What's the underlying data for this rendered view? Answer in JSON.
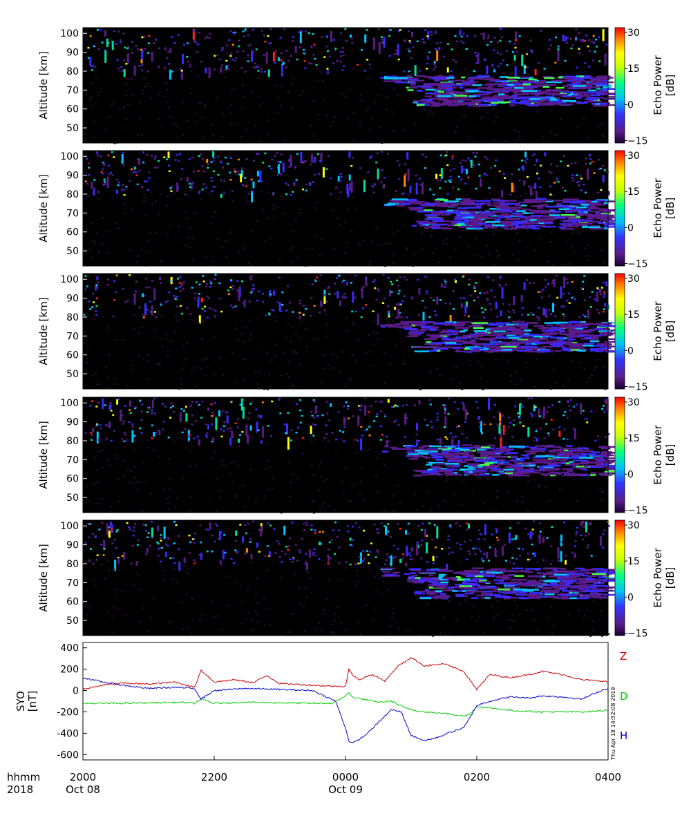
{
  "chart_data": {
    "type": "heatmap",
    "time_axis": {
      "tick_labels": [
        "2000",
        "2200",
        "0000",
        "0200",
        "0400"
      ],
      "range_hours": [
        20,
        28
      ],
      "row_label_1": "hhmm",
      "row_label_2": "2018",
      "dates": [
        {
          "at": "2000",
          "label": "Oct 08"
        },
        {
          "at": "0000",
          "label": "Oct 09"
        }
      ]
    },
    "radar_panels": {
      "count": 5,
      "ylabel": "Altitude [km]",
      "ylim": [
        42,
        103
      ],
      "yticks": [
        50,
        60,
        70,
        80,
        90,
        100
      ],
      "colorbar": {
        "label_line1": "Echo Power",
        "label_line2": "[dB]",
        "range": [
          -16,
          32
        ],
        "ticks": [
          30,
          15,
          0,
          -15
        ],
        "tick_labels": [
          "30",
          "15",
          "0",
          "−15"
        ],
        "colormap": [
          "#1a0033",
          "#5a1b8a",
          "#3333ff",
          "#00c0ff",
          "#00ff80",
          "#ffff00",
          "#ff8000",
          "#ff0000"
        ]
      },
      "features": [
        {
          "layer": "upper",
          "alt_range_km": [
            82,
            103
          ],
          "time_range": [
            "2000",
            "0400"
          ],
          "echo_power_dB": [
            -15,
            30
          ]
        },
        {
          "layer": "lower",
          "alt_range_km": [
            58,
            78
          ],
          "time_range": [
            "0030",
            "0400"
          ],
          "echo_power_dB": [
            -10,
            10
          ]
        }
      ]
    },
    "magnetometer": {
      "type": "line",
      "ylabel_line1": "SYO",
      "ylabel_line2": "[nT]",
      "ylim": [
        -650,
        450
      ],
      "yticks": [
        400,
        200,
        0,
        -200,
        -400,
        -600
      ],
      "series": [
        {
          "name": "Z",
          "color": "#cc0000",
          "x_hours": [
            20,
            20.3,
            20.6,
            21,
            21.4,
            21.7,
            21.8,
            22,
            22.3,
            22.6,
            22.8,
            23,
            23.2,
            23.5,
            23.8,
            24,
            24.05,
            24.1,
            24.2,
            24.4,
            24.6,
            24.8,
            25,
            25.2,
            25.5,
            25.8,
            26,
            26.2,
            26.5,
            26.8,
            27,
            27.3,
            27.6,
            27.9,
            28
          ],
          "values": [
            10,
            50,
            70,
            60,
            80,
            30,
            190,
            80,
            100,
            75,
            140,
            65,
            60,
            50,
            40,
            40,
            200,
            150,
            100,
            150,
            90,
            230,
            310,
            230,
            250,
            180,
            10,
            150,
            120,
            150,
            180,
            150,
            100,
            90,
            80
          ]
        },
        {
          "name": "D",
          "color": "#00cc00",
          "x_hours": [
            20,
            20.5,
            21,
            21.5,
            21.7,
            21.8,
            22,
            22.5,
            23,
            23.5,
            23.8,
            24,
            24.05,
            24.1,
            24.5,
            24.7,
            24.9,
            25,
            25.2,
            25.4,
            25.6,
            25.8,
            25.9,
            26,
            26.3,
            26.6,
            27,
            27.3,
            27.6,
            27.9,
            28
          ],
          "values": [
            -120,
            -120,
            -115,
            -110,
            -120,
            -80,
            -120,
            -110,
            -115,
            -120,
            -120,
            -50,
            -20,
            -60,
            -110,
            -100,
            -160,
            -180,
            -200,
            -210,
            -220,
            -240,
            -220,
            -150,
            -170,
            -190,
            -200,
            -200,
            -200,
            -190,
            -180
          ]
        },
        {
          "name": "H",
          "color": "#0000cc",
          "x_hours": [
            20,
            20.3,
            20.6,
            21,
            21.4,
            21.7,
            21.8,
            22,
            22.5,
            23,
            23.5,
            23.85,
            24,
            24.05,
            24.1,
            24.15,
            24.3,
            24.5,
            24.7,
            24.85,
            24.95,
            25,
            25.2,
            25.4,
            25.6,
            25.8,
            25.9,
            26,
            26.2,
            26.5,
            26.8,
            27,
            27.3,
            27.6,
            27.9,
            28
          ],
          "values": [
            120,
            80,
            50,
            20,
            30,
            20,
            -80,
            0,
            20,
            10,
            0,
            -100,
            -350,
            -470,
            -490,
            -480,
            -420,
            -300,
            -180,
            -200,
            -350,
            -420,
            -470,
            -440,
            -390,
            -350,
            -250,
            -140,
            -100,
            -60,
            -70,
            -50,
            -60,
            -80,
            0,
            20
          ]
        }
      ]
    },
    "timestamp_label": "Thu Apr 18 14:52:08 2019"
  }
}
